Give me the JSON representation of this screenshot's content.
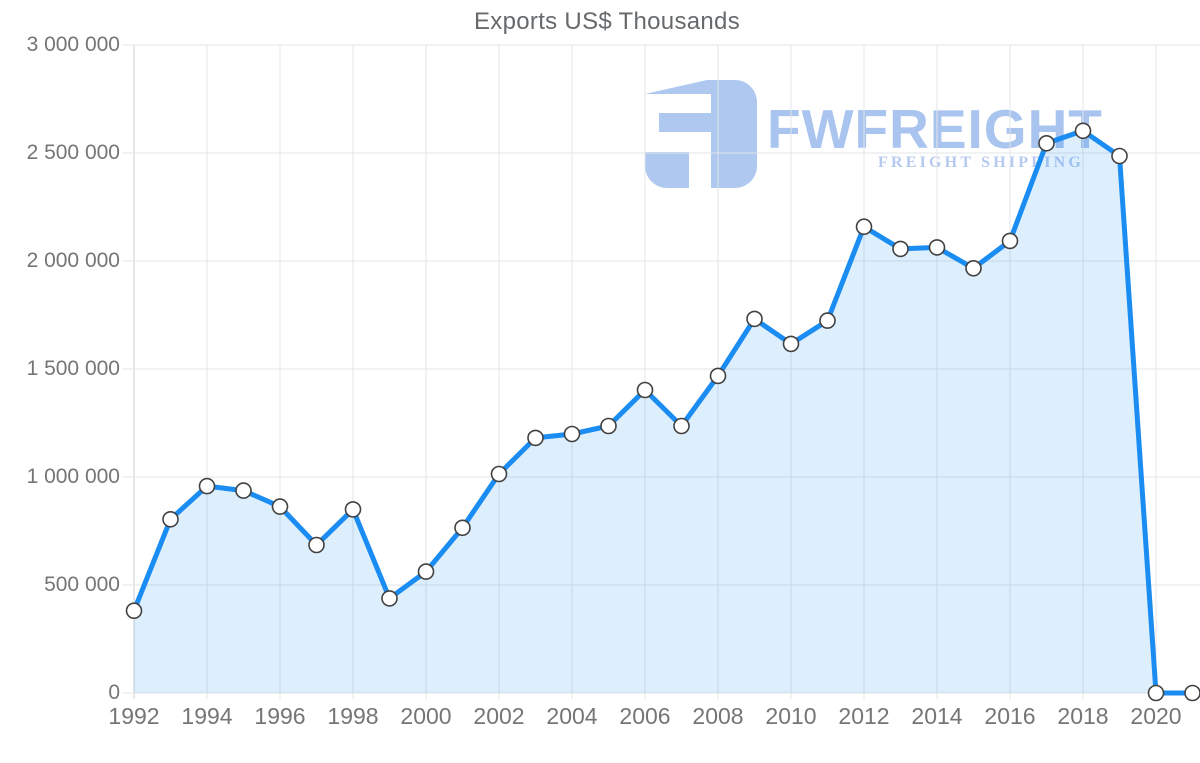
{
  "title": "Exports US$ Thousands",
  "watermark": {
    "brand": "FWFREIGHT",
    "tagline": "FREIGHT SHIPPING",
    "icon": "fwfreight-logo-icon",
    "icon_color": "#aec8f0",
    "brand_color": "#a9c4ef",
    "tagline_color": "#b6c9f0"
  },
  "chart_data": {
    "type": "area",
    "title": "Exports US$ Thousands",
    "xlabel": "",
    "ylabel": "",
    "x": [
      1992,
      1993,
      1994,
      1995,
      1996,
      1997,
      1998,
      1999,
      2000,
      2001,
      2002,
      2003,
      2004,
      2005,
      2006,
      2007,
      2008,
      2009,
      2010,
      2011,
      2012,
      2013,
      2014,
      2015,
      2016,
      2017,
      2018,
      2019,
      2020,
      2021
    ],
    "values": [
      381000,
      804000,
      958000,
      937000,
      863000,
      685000,
      850000,
      438000,
      562000,
      765000,
      1014000,
      1181000,
      1199000,
      1236000,
      1403000,
      1236000,
      1468000,
      1732000,
      1616000,
      1724000,
      2159000,
      2056000,
      2063000,
      1966000,
      2093000,
      2545000,
      2603000,
      2486000,
      0,
      0
    ],
    "ylim": [
      0,
      3000000
    ],
    "y_ticks": [
      0,
      500000,
      1000000,
      1500000,
      2000000,
      2500000,
      3000000
    ],
    "y_tick_labels": [
      "0",
      "500 000",
      "1 000 000",
      "1 500 000",
      "2 000 000",
      "2 500 000",
      "3 000 000"
    ],
    "x_tick_years": [
      1992,
      1994,
      1996,
      1998,
      2000,
      2002,
      2004,
      2006,
      2008,
      2010,
      2012,
      2014,
      2016,
      2018,
      2020
    ],
    "x_tick_labels": [
      "1992",
      "1994",
      "1996",
      "1998",
      "2000",
      "2002",
      "2004",
      "2006",
      "2008",
      "2010",
      "2012",
      "2014",
      "2016",
      "2018",
      "2020"
    ],
    "grid": true,
    "legend": "none",
    "line_color": "#1b8df2",
    "fill_color": "rgba(27,141,242,0.15)",
    "marker_fill": "#ffffff",
    "marker_stroke": "#414141",
    "grid_color": "#e3e5e7",
    "axis_line_color": "#c9ced3",
    "label_color": "#757575",
    "title_color": "#666a6d"
  }
}
